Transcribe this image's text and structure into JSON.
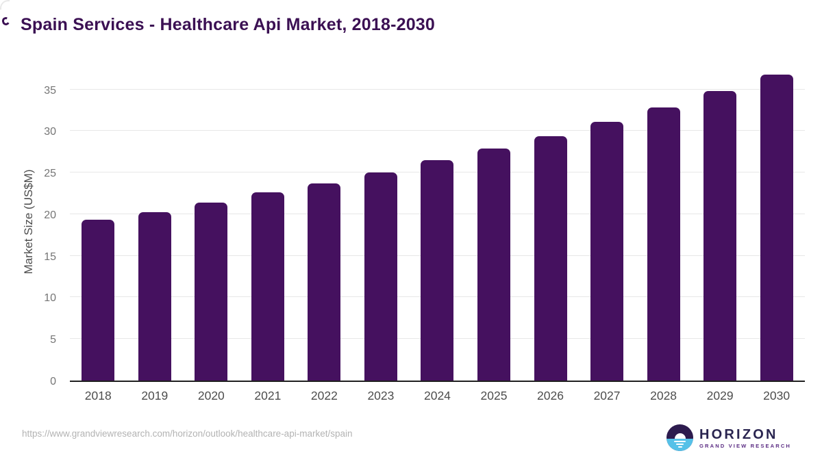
{
  "title": "Spain Services - Healthcare Api Market, 2018-2030",
  "chart_data": {
    "type": "bar",
    "title": "Spain Services - Healthcare Api Market, 2018-2030",
    "categories": [
      "2018",
      "2019",
      "2020",
      "2021",
      "2022",
      "2023",
      "2024",
      "2025",
      "2026",
      "2027",
      "2028",
      "2029",
      "2030"
    ],
    "values": [
      19.3,
      20.2,
      21.4,
      22.6,
      23.7,
      25.0,
      26.5,
      27.9,
      29.4,
      31.1,
      32.8,
      34.8,
      36.8
    ],
    "xlabel": "",
    "ylabel": "Market Size (US$M)",
    "ylim": [
      0,
      38.5
    ],
    "yticks": [
      0,
      5,
      10,
      15,
      20,
      25,
      30,
      35
    ],
    "grid": true,
    "legend": false,
    "bar_color": "#45115f"
  },
  "footer": {
    "source_url": "https://www.grandviewresearch.com/horizon/outlook/healthcare-api-market/spain",
    "logo_name": "HORIZON",
    "logo_subtitle": "GRAND VIEW RESEARCH"
  },
  "colors": {
    "bar": "#45115f",
    "title_text": "#3b1053",
    "axis_text": "#4d4d4d",
    "tick_text": "#757575",
    "gridline": "#e7e7e7",
    "url_text": "#b3b3b3",
    "logo_dark": "#2d1b4e",
    "logo_blue": "#56c1e8",
    "logo_sub_text": "#5b2c83"
  }
}
